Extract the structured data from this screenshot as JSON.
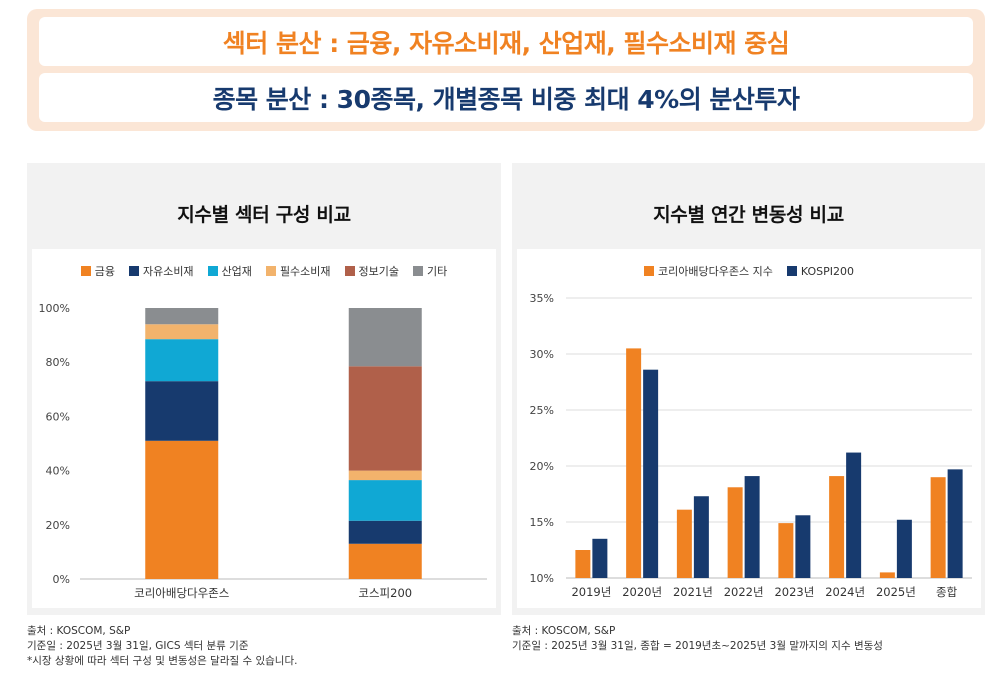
{
  "banner": {
    "line1": "섹터 분산 : 금융, 자유소비재, 산업재, 필수소비재 중심",
    "line2": "종목 분산 : 30종목, 개별종목 비중 최대 4%의 분산투자"
  },
  "colors": {
    "orange": "#f08222",
    "navy": "#173a6e",
    "cyan": "#10a8d4",
    "peach": "#f2b36c",
    "brown": "#b0604a",
    "gray": "#8a8d90",
    "grid": "#dddddd"
  },
  "chart_data": [
    {
      "type": "bar",
      "stacked": true,
      "title": "지수별 섹터 구성 비교",
      "categories": [
        "코리아배당다우존스",
        "코스피200"
      ],
      "series": [
        {
          "name": "금융",
          "color": "#f08222",
          "values": [
            51,
            13
          ]
        },
        {
          "name": "자유소비재",
          "color": "#173a6e",
          "values": [
            22,
            8.5
          ]
        },
        {
          "name": "산업재",
          "color": "#10a8d4",
          "values": [
            15.5,
            15
          ]
        },
        {
          "name": "필수소비재",
          "color": "#f2b36c",
          "values": [
            5.5,
            3.5
          ]
        },
        {
          "name": "정보기술",
          "color": "#b0604a",
          "values": [
            0,
            38.5
          ]
        },
        {
          "name": "기타",
          "color": "#8a8d90",
          "values": [
            6,
            21.5
          ]
        }
      ],
      "ylim": [
        0,
        100
      ],
      "yticks": [
        "0%",
        "20%",
        "40%",
        "60%",
        "80%",
        "100%"
      ],
      "ytick_values": [
        0,
        20,
        40,
        60,
        80,
        100
      ],
      "legend": "top"
    },
    {
      "type": "bar",
      "stacked": false,
      "title": "지수별 연간 변동성 비교",
      "categories": [
        "2019년",
        "2020년",
        "2021년",
        "2022년",
        "2023년",
        "2024년",
        "2025년",
        "종합"
      ],
      "series": [
        {
          "name": "코리아배당다우존스 지수",
          "color": "#f08222",
          "values": [
            12.5,
            30.5,
            16.1,
            18.1,
            14.9,
            19.1,
            10.5,
            19.0
          ]
        },
        {
          "name": "KOSPI200",
          "color": "#173a6e",
          "values": [
            13.5,
            28.6,
            17.3,
            19.1,
            15.6,
            21.2,
            15.2,
            19.7
          ]
        }
      ],
      "ylim": [
        10,
        35
      ],
      "yticks": [
        "10%",
        "15%",
        "20%",
        "25%",
        "30%",
        "35%"
      ],
      "ytick_values": [
        10,
        15,
        20,
        25,
        30,
        35
      ],
      "legend": "top"
    }
  ],
  "footnotes": {
    "left": [
      "출처 : KOSCOM, S&P",
      "기준일 : 2025년 3월 31일, GICS 섹터 분류 기준",
      "*시장 상황에 따라 섹터 구성 및 변동성은 달라질 수 있습니다."
    ],
    "right": [
      "출처 : KOSCOM, S&P",
      "기준일 : 2025년 3월 31일, 종합 = 2019년초~2025년 3월 말까지의 지수 변동성"
    ]
  }
}
